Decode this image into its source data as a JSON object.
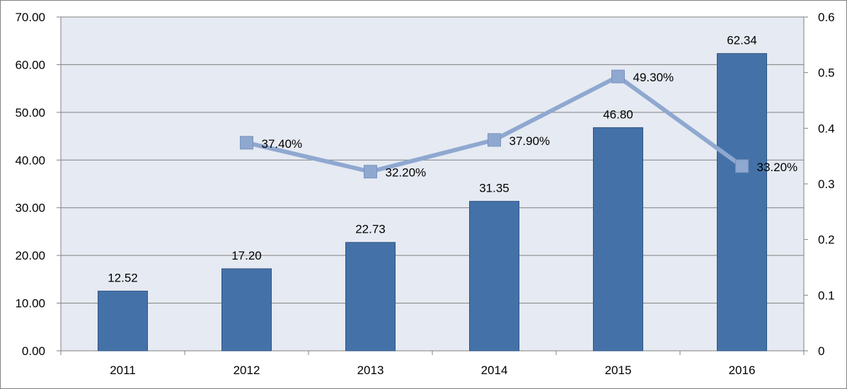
{
  "chart_data": {
    "type": "bar",
    "categories": [
      "2011",
      "2012",
      "2013",
      "2014",
      "2015",
      "2016"
    ],
    "series": [
      {
        "type": "bar",
        "axis": "left",
        "values": [
          12.52,
          17.2,
          22.73,
          31.35,
          46.8,
          62.34
        ],
        "labels": [
          "12.52",
          "17.20",
          "22.73",
          "31.35",
          "46.80",
          "62.34"
        ],
        "color": "#4472A8"
      },
      {
        "type": "line",
        "axis": "right",
        "values": [
          null,
          0.374,
          0.322,
          0.379,
          0.493,
          0.332
        ],
        "labels": [
          "",
          "37.40%",
          "32.20%",
          "37.90%",
          "49.30%",
          "33.20%"
        ],
        "color": "#8FA8D0",
        "marker": "square"
      }
    ],
    "y_left": {
      "ylim": [
        0,
        70
      ],
      "ticks": [
        "0.00",
        "10.00",
        "20.00",
        "30.00",
        "40.00",
        "50.00",
        "60.00",
        "70.00"
      ]
    },
    "y_right": {
      "ylim": [
        0,
        0.6
      ],
      "ticks": [
        "0",
        "0.1",
        "0.2",
        "0.3",
        "0.4",
        "0.5",
        "0.6"
      ]
    },
    "grid": true,
    "legend": "none",
    "plot_background": "#E6EAF2"
  }
}
